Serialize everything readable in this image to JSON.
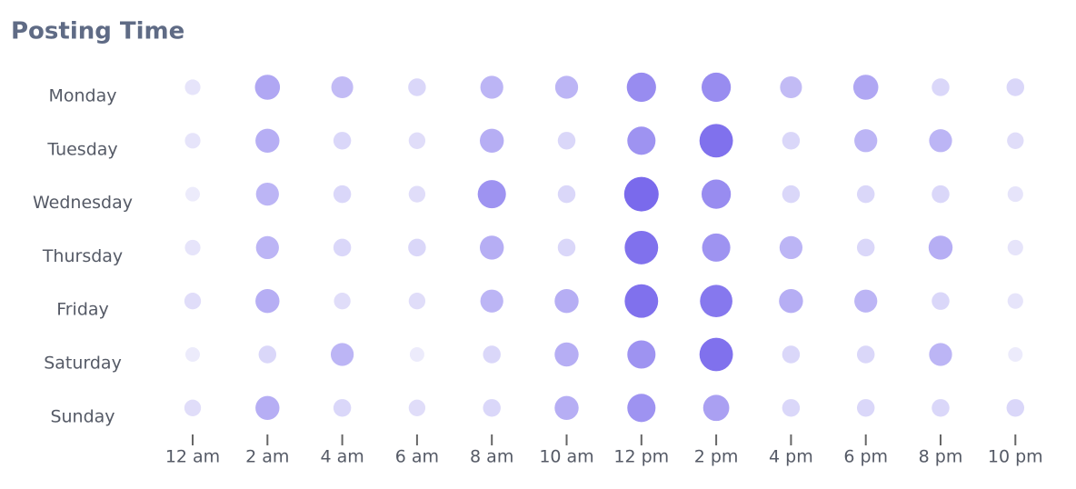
{
  "chart_data": {
    "type": "punchcard",
    "title": "Posting Time",
    "categories": [
      "12 am",
      "2 am",
      "4 am",
      "6 am",
      "8 am",
      "10 am",
      "12 pm",
      "2 pm",
      "4 pm",
      "6 pm",
      "8 pm",
      "10 pm"
    ],
    "row_categories": [
      "Monday",
      "Tuesday",
      "Wednesday",
      "Thursday",
      "Friday",
      "Saturday",
      "Sunday"
    ],
    "values": [
      [
        10,
        55,
        40,
        20,
        45,
        45,
        75,
        75,
        40,
        55,
        20,
        20
      ],
      [
        10,
        50,
        20,
        15,
        50,
        20,
        70,
        95,
        20,
        45,
        45,
        15
      ],
      [
        5,
        45,
        20,
        15,
        70,
        20,
        100,
        75,
        20,
        20,
        20,
        10
      ],
      [
        10,
        45,
        20,
        20,
        50,
        20,
        95,
        70,
        45,
        20,
        50,
        10
      ],
      [
        15,
        50,
        15,
        15,
        45,
        50,
        95,
        90,
        50,
        45,
        20,
        10
      ],
      [
        5,
        20,
        45,
        5,
        20,
        50,
        70,
        95,
        20,
        20,
        45,
        5
      ],
      [
        15,
        50,
        20,
        15,
        20,
        50,
        70,
        60,
        20,
        20,
        20,
        20
      ]
    ],
    "colors": [
      "#ecebfb",
      "#7a6aec"
    ]
  }
}
